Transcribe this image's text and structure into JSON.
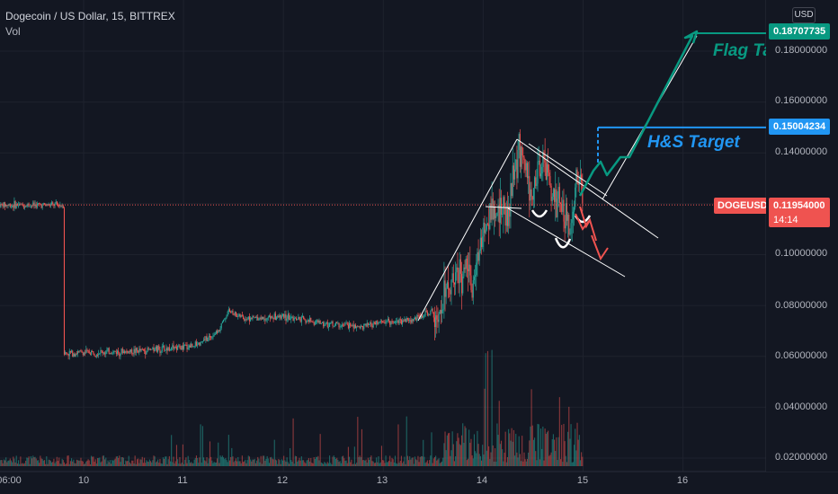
{
  "legend": {
    "symbol_line": "Dogecoin / US Dollar, 15, BITTREX",
    "volume_label": "Vol"
  },
  "currency_button": "USD",
  "price_axis": {
    "ticks": [
      "0.18000000",
      "0.16000000",
      "0.14000000",
      "0.10000000",
      "0.08000000",
      "0.06000000",
      "0.04000000",
      "0.02000000"
    ],
    "flag_target_tag": "0.18707735",
    "hs_target_tag": "0.15004234",
    "current_price_tag": "0.11954000",
    "countdown": "14:14",
    "symbol_tag": "DOGEUSD"
  },
  "time_axis": {
    "labels": [
      "06:00",
      "10",
      "11",
      "12",
      "13",
      "14",
      "15",
      "16"
    ]
  },
  "annotations": {
    "flag_target": "Flag Ta",
    "hs_target": "H&S Target"
  },
  "colors": {
    "background": "#131722",
    "up_candle": "#26a69a",
    "down_candle": "#ef5350",
    "flag_target": "#089981",
    "hs_target": "#2196f3",
    "projection_down": "#ef5350",
    "trendline": "#ffffff"
  },
  "chart_data": {
    "type": "candlestick",
    "symbol": "Dogecoin / US Dollar",
    "interval": "15",
    "exchange": "BITTREX",
    "x": [
      "10",
      "11",
      "12",
      "13",
      "14",
      "15",
      "16"
    ],
    "y_range": [
      0.015,
      0.195
    ],
    "current_price": 0.11954,
    "hs_target": 0.15004234,
    "flag_target": 0.18707735,
    "close_path": [
      {
        "t": -0.2,
        "p": 0.0612
      },
      {
        "t": 0.0,
        "p": 0.0615
      },
      {
        "t": 0.5,
        "p": 0.062
      },
      {
        "t": 1.0,
        "p": 0.0635
      },
      {
        "t": 1.2,
        "p": 0.066
      },
      {
        "t": 1.35,
        "p": 0.07
      },
      {
        "t": 1.45,
        "p": 0.078
      },
      {
        "t": 1.6,
        "p": 0.075
      },
      {
        "t": 2.0,
        "p": 0.0755
      },
      {
        "t": 2.4,
        "p": 0.073
      },
      {
        "t": 2.8,
        "p": 0.0715
      },
      {
        "t": 3.0,
        "p": 0.0735
      },
      {
        "t": 3.3,
        "p": 0.0745
      },
      {
        "t": 3.55,
        "p": 0.079
      },
      {
        "t": 3.7,
        "p": 0.092
      },
      {
        "t": 3.9,
        "p": 0.091
      },
      {
        "t": 4.05,
        "p": 0.117
      },
      {
        "t": 4.25,
        "p": 0.117
      },
      {
        "t": 4.35,
        "p": 0.14
      },
      {
        "t": 4.5,
        "p": 0.125
      },
      {
        "t": 4.6,
        "p": 0.138
      },
      {
        "t": 4.7,
        "p": 0.121
      },
      {
        "t": 4.8,
        "p": 0.118
      },
      {
        "t": 4.87,
        "p": 0.107
      },
      {
        "t": 4.93,
        "p": 0.13
      },
      {
        "t": 5.0,
        "p": 0.1195
      }
    ],
    "volume_scale_note": "lower pane"
  }
}
